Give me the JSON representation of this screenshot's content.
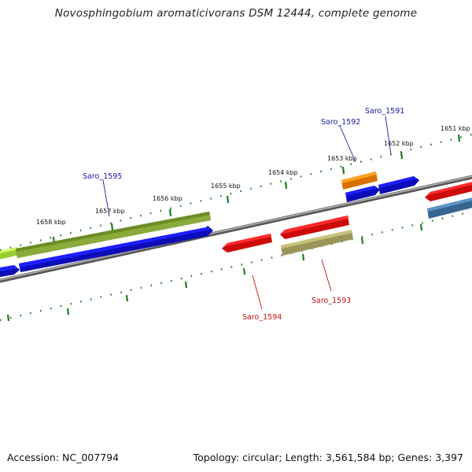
{
  "title": "Novosphingobium aromaticivorans DSM 12444, complete genome",
  "accession": "Accession: NC_007794",
  "summary": "Topology: circular; Length: 3,561,584 bp; Genes: 3,397",
  "colors": {
    "backbone": "#8a8a8a",
    "tick": "#1e7a1e",
    "forward_label": "#1a1aa8",
    "reverse_label": "#cc1111",
    "blue": "#1414e6",
    "red": "#ff1a1a",
    "orange": "#ff8c00",
    "olive": "#6b8e23",
    "khaki": "#bdb76b",
    "steelblue": "#4682b4",
    "lime": "#adff2f"
  },
  "kbp_labels": [
    "1651 kbp",
    "1652 kbp",
    "1653 kbp",
    "1654 kbp",
    "1655 kbp",
    "1656 kbp",
    "1657 kbp",
    "1658 kbp"
  ],
  "gene_labels": {
    "forward": [
      "Saro_1591",
      "Saro_1592",
      "Saro_1595"
    ],
    "reverse": [
      "Saro_1593",
      "Saro_1594"
    ]
  }
}
